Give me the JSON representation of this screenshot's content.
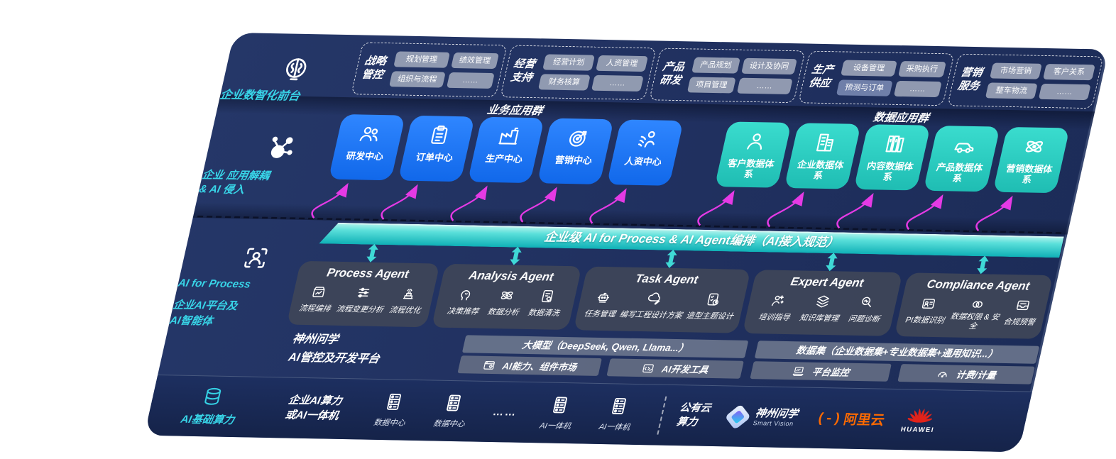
{
  "colors": {
    "panel_navy": "#20305f",
    "band_navy": "#152349",
    "accent_cyan": "#38d5e8",
    "tile_blue": "#1677f0",
    "tile_teal": "#2bd4c8",
    "magenta_arrow": "#e53ae5",
    "orchestration_teal": "#0fb0b6",
    "chip_gray": "#9aa3b7",
    "card_gray": "#3e4659",
    "aliyun_orange": "#ff6a00",
    "huawei_red": "#e2231a"
  },
  "front_layer": {
    "icon": "brain-chip-icon",
    "label": "企业数智化前台",
    "groups": [
      {
        "name": "战略管控",
        "chips": [
          {
            "label": "规划管理"
          },
          {
            "label": "绩效管理"
          },
          {
            "label": "组织与流程"
          },
          {
            "label": "……"
          }
        ]
      },
      {
        "name": "经营支持",
        "chips": [
          {
            "label": "经营计划"
          },
          {
            "label": "人资管理"
          },
          {
            "label": "财务核算"
          },
          {
            "label": "……"
          }
        ]
      },
      {
        "name": "产品研发",
        "chips": [
          {
            "label": "产品规划"
          },
          {
            "label": "设计及协同"
          },
          {
            "label": "项目管理"
          },
          {
            "label": "……"
          }
        ]
      },
      {
        "name": "生产供应",
        "chips": [
          {
            "label": "设备管理"
          },
          {
            "label": "采购执行"
          },
          {
            "label": "预测与订单",
            "alt": true
          },
          {
            "label": "……"
          }
        ]
      },
      {
        "name": "营销服务",
        "chips": [
          {
            "label": "市场营销"
          },
          {
            "label": "客户关系"
          },
          {
            "label": "整车物流"
          },
          {
            "label": "……"
          }
        ]
      }
    ]
  },
  "app_layer": {
    "icon": "molecule-icon",
    "label_lines": [
      "企业 应用解耦",
      "& AI 侵入"
    ],
    "business_group": {
      "title": "业务应用群",
      "tiles": [
        {
          "icon": "users-icon",
          "label": "研发中心"
        },
        {
          "icon": "clipboard-icon",
          "label": "订单中心"
        },
        {
          "icon": "factory-icon",
          "label": "生产中心"
        },
        {
          "icon": "target-icon",
          "label": "营销中心"
        },
        {
          "icon": "people-motion-icon",
          "label": "人资中心"
        }
      ]
    },
    "data_group": {
      "title": "数据应用群",
      "tiles": [
        {
          "icon": "person-icon",
          "label": "客户数据体系"
        },
        {
          "icon": "building-icon",
          "label": "企业数据体系"
        },
        {
          "icon": "columns-icon",
          "label": "内容数据体系"
        },
        {
          "icon": "car-icon",
          "label": "产品数据体系"
        },
        {
          "icon": "atom-icon",
          "label": "营销数据体系"
        }
      ]
    }
  },
  "orchestration": {
    "label": "企业级 AI for Process & AI Agent编排（AI接入规范）"
  },
  "agent_layer": {
    "icon": "scan-person-icon",
    "label_lines": [
      "AI for Process",
      "企业AI平台及",
      "AI智能体"
    ],
    "agents": [
      {
        "title": "Process Agent",
        "items": [
          {
            "icon": "box-chart-icon",
            "label": "流程编排"
          },
          {
            "icon": "sliders-icon",
            "label": "流程变更分析"
          },
          {
            "icon": "stack-icon",
            "label": "流程优化"
          }
        ]
      },
      {
        "title": "Analysis Agent",
        "items": [
          {
            "icon": "head-chat-icon",
            "label": "决策推荐"
          },
          {
            "icon": "atom-icon",
            "label": "数据分析"
          },
          {
            "icon": "doc-gear-icon",
            "label": "数据清洗"
          }
        ]
      },
      {
        "title": "Task Agent",
        "items": [
          {
            "icon": "robot-icon",
            "label": "任务管理"
          },
          {
            "icon": "cloud-pen-icon",
            "label": "编写工程设计方案"
          },
          {
            "icon": "checklist-icon",
            "label": "造型主题设计"
          }
        ]
      },
      {
        "title": "Expert Agent",
        "items": [
          {
            "icon": "person-spark-icon",
            "label": "培训指导"
          },
          {
            "icon": "layers-icon",
            "label": "知识库管理"
          },
          {
            "icon": "diagnose-icon",
            "label": "问题诊断"
          }
        ]
      },
      {
        "title": "Compliance Agent",
        "items": [
          {
            "icon": "id-card-icon",
            "label": "PI数据识别"
          },
          {
            "icon": "rings-icon",
            "label": "数据权限 & 安全"
          },
          {
            "icon": "mail-icon",
            "label": "合规预警"
          }
        ]
      }
    ]
  },
  "platform_layer": {
    "label_lines": [
      "神州问学",
      "AI管控及开发平台"
    ],
    "model_bar": "大模型（DeepSeek, Qwen, Llama...）",
    "dataset_bar": "数据集（企业数据集+专业数据集+通用知识...）",
    "tools": [
      {
        "icon": "market-icon",
        "label": "AI能力、组件市场"
      },
      {
        "icon": "devtool-icon",
        "label": "AI开发工具"
      },
      {
        "icon": "laptop-icon",
        "label": "平台监控"
      },
      {
        "icon": "gauge-icon",
        "label": "计费/计量"
      }
    ]
  },
  "infra_layer": {
    "icon": "database-icon",
    "label": "AI基础算力",
    "enterprise_lines": [
      "企业AI算力",
      "或AI一体机"
    ],
    "nodes": [
      {
        "icon": "server-icon",
        "label": "数据中心"
      },
      {
        "icon": "server-icon",
        "label": "数据中心"
      },
      {
        "icon": "server-icon",
        "label": "AI一体机"
      },
      {
        "icon": "server-icon",
        "label": "AI一体机"
      }
    ],
    "dots": "…… ",
    "public_cloud_lines": [
      "公有云",
      "算力"
    ],
    "logos": {
      "smart_vision": {
        "text": "神州问学",
        "sub": "Smart Vision"
      },
      "aliyun": {
        "bracket": "(-)",
        "text": "阿里云"
      },
      "huawei": {
        "text": "HUAWEI"
      }
    }
  }
}
